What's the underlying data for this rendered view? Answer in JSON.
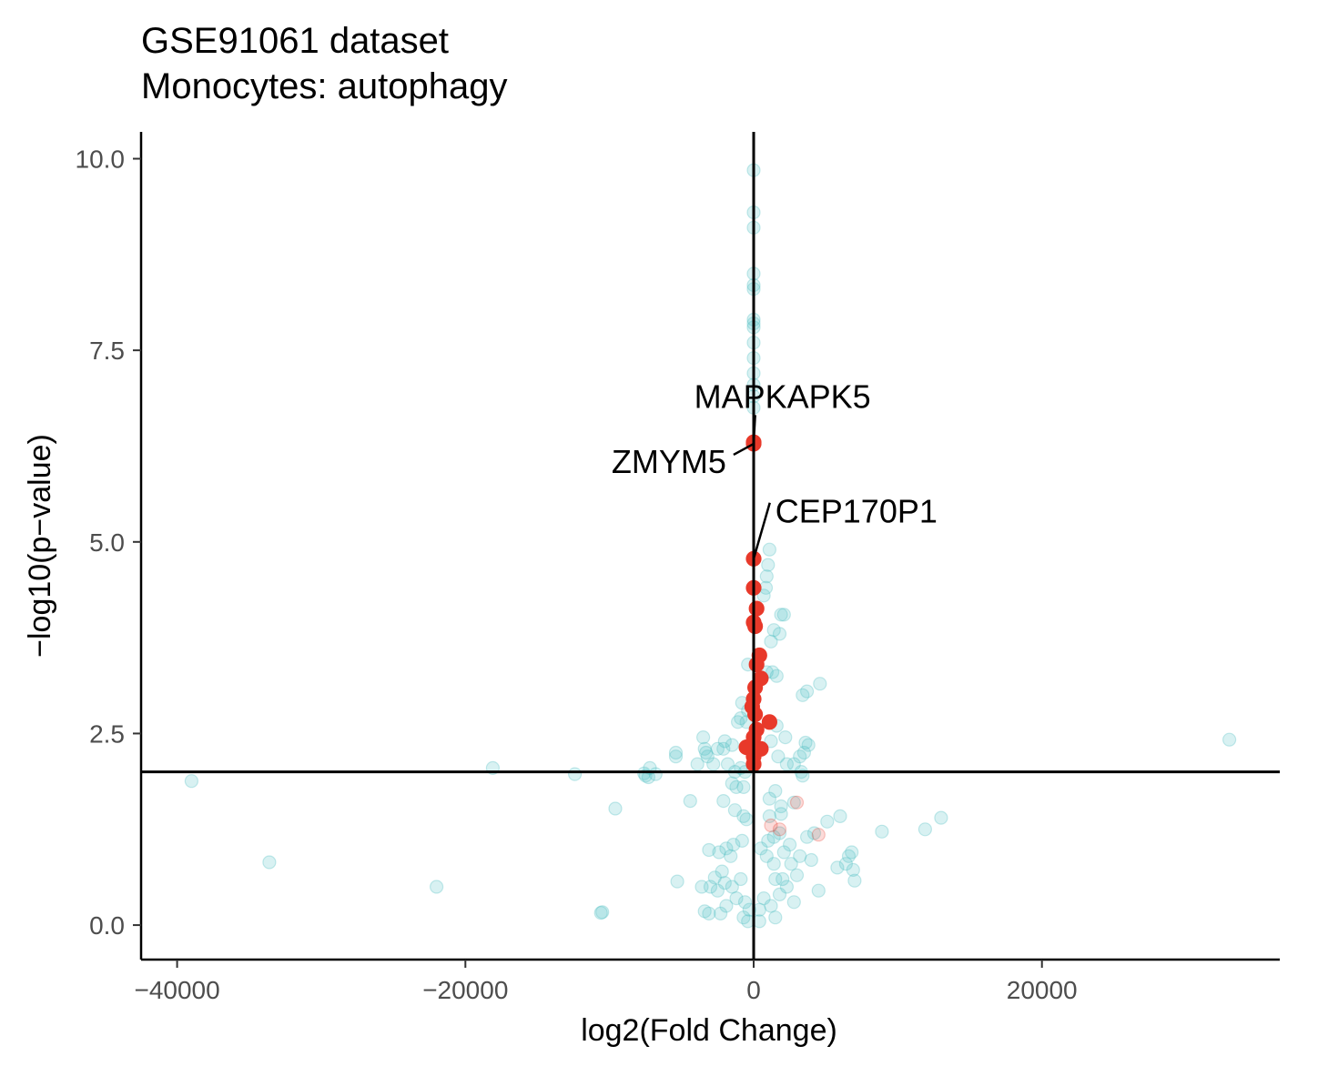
{
  "chart_data": {
    "type": "scatter",
    "title": "GSE91061 dataset",
    "subtitle": "Monocytes: autophagy",
    "xlabel": "log2(Fold Change)",
    "ylabel": "−log10(p−value)",
    "xlim": [
      -42500,
      36500
    ],
    "ylim": [
      -0.45,
      10.35
    ],
    "x_ticks": [
      -40000,
      -20000,
      0,
      20000
    ],
    "x_tick_labels": [
      "−40000",
      "−20000",
      "0",
      "20000"
    ],
    "y_ticks": [
      0.0,
      2.5,
      5.0,
      7.5,
      10.0
    ],
    "y_tick_labels": [
      "0.0",
      "2.5",
      "5.0",
      "7.5",
      "10.0"
    ],
    "reference_lines": {
      "vertical_x": 0,
      "horizontal_y": 2.0
    },
    "grid": false,
    "colors": {
      "background_genes": "#4dbdc2",
      "highlighted_genes": "#e8392a",
      "axis": "#000000"
    },
    "series": [
      {
        "color": "#4dbdc2",
        "opacity": 0.22,
        "points": [
          [
            0,
            9.85
          ],
          [
            0,
            9.3
          ],
          [
            0,
            9.1
          ],
          [
            0,
            8.5
          ],
          [
            0,
            8.35
          ],
          [
            0,
            8.3
          ],
          [
            0,
            7.9
          ],
          [
            0,
            7.85
          ],
          [
            0,
            7.8
          ],
          [
            0,
            7.6
          ],
          [
            0,
            7.4
          ],
          [
            0,
            7.2
          ],
          [
            0,
            7.05
          ],
          [
            0,
            6.9
          ],
          [
            0,
            6.75
          ],
          [
            1100,
            4.9
          ],
          [
            1000,
            4.7
          ],
          [
            900,
            4.55
          ],
          [
            850,
            4.4
          ],
          [
            700,
            4.3
          ],
          [
            1900,
            4.05
          ],
          [
            2100,
            4.05
          ],
          [
            1400,
            3.85
          ],
          [
            1800,
            3.8
          ],
          [
            1200,
            3.7
          ],
          [
            -400,
            3.4
          ],
          [
            900,
            3.3
          ],
          [
            1300,
            3.3
          ],
          [
            1600,
            3.25
          ],
          [
            4600,
            3.15
          ],
          [
            3700,
            3.05
          ],
          [
            3400,
            3.0
          ],
          [
            -800,
            2.9
          ],
          [
            -400,
            2.8
          ],
          [
            -900,
            2.7
          ],
          [
            -500,
            2.65
          ],
          [
            -1100,
            2.65
          ],
          [
            -2000,
            2.4
          ],
          [
            -1500,
            2.35
          ],
          [
            -2100,
            2.3
          ],
          [
            -2500,
            2.3
          ],
          [
            -3500,
            2.45
          ],
          [
            -3400,
            2.3
          ],
          [
            -3300,
            2.25
          ],
          [
            -5400,
            2.25
          ],
          [
            -5400,
            2.2
          ],
          [
            -7200,
            2.05
          ],
          [
            -7600,
            1.98
          ],
          [
            -6800,
            1.97
          ],
          [
            -7500,
            1.95
          ],
          [
            -7300,
            1.93
          ],
          [
            -12400,
            1.97
          ],
          [
            -18100,
            2.05
          ],
          [
            -3900,
            2.1
          ],
          [
            -3200,
            2.2
          ],
          [
            -2800,
            2.1
          ],
          [
            -1800,
            2.1
          ],
          [
            -1300,
            2.0
          ],
          [
            -900,
            2.05
          ],
          [
            -600,
            2.0
          ],
          [
            1700,
            2.2
          ],
          [
            2300,
            2.1
          ],
          [
            2800,
            2.1
          ],
          [
            3200,
            2.2
          ],
          [
            3500,
            2.25
          ],
          [
            3800,
            2.35
          ],
          [
            3600,
            2.38
          ],
          [
            3300,
            2.0
          ],
          [
            3400,
            1.95
          ],
          [
            1200,
            2.4
          ],
          [
            1600,
            2.6
          ],
          [
            2200,
            2.45
          ],
          [
            33000,
            2.42
          ],
          [
            -39000,
            1.88
          ],
          [
            -700,
            1.8
          ],
          [
            -1200,
            1.8
          ],
          [
            -1500,
            1.85
          ],
          [
            1500,
            1.75
          ],
          [
            1100,
            1.65
          ],
          [
            1900,
            1.55
          ],
          [
            2800,
            1.6
          ],
          [
            -2100,
            1.62
          ],
          [
            -4400,
            1.62
          ],
          [
            -9600,
            1.52
          ],
          [
            -1300,
            1.5
          ],
          [
            -700,
            1.42
          ],
          [
            -500,
            1.38
          ],
          [
            1100,
            1.42
          ],
          [
            1900,
            1.45
          ],
          [
            6000,
            1.42
          ],
          [
            13000,
            1.4
          ],
          [
            11900,
            1.25
          ],
          [
            8900,
            1.22
          ],
          [
            5100,
            1.35
          ],
          [
            4200,
            1.2
          ],
          [
            3700,
            1.15
          ],
          [
            1800,
            1.2
          ],
          [
            1400,
            1.15
          ],
          [
            1000,
            1.1
          ],
          [
            2500,
            1.05
          ],
          [
            -800,
            1.1
          ],
          [
            -1400,
            1.05
          ],
          [
            -1900,
            1.0
          ],
          [
            -3100,
            0.98
          ],
          [
            -2400,
            0.95
          ],
          [
            -1600,
            0.9
          ],
          [
            -33600,
            0.82
          ],
          [
            -22000,
            0.5
          ],
          [
            -5300,
            0.57
          ],
          [
            -2700,
            0.62
          ],
          [
            -2200,
            0.7
          ],
          [
            -2000,
            0.55
          ],
          [
            -2500,
            0.45
          ],
          [
            -3000,
            0.5
          ],
          [
            -3600,
            0.5
          ],
          [
            -1500,
            0.5
          ],
          [
            -900,
            0.6
          ],
          [
            -10500,
            0.17
          ],
          [
            -10600,
            0.16
          ],
          [
            -2300,
            0.15
          ],
          [
            -3100,
            0.15
          ],
          [
            -3400,
            0.18
          ],
          [
            -1900,
            0.25
          ],
          [
            -1200,
            0.35
          ],
          [
            -600,
            0.3
          ],
          [
            -300,
            0.2
          ],
          [
            400,
            0.2
          ],
          [
            700,
            0.35
          ],
          [
            1200,
            0.25
          ],
          [
            1800,
            0.4
          ],
          [
            2000,
            0.6
          ],
          [
            2600,
            0.8
          ],
          [
            3200,
            0.9
          ],
          [
            4000,
            0.85
          ],
          [
            6600,
            0.9
          ],
          [
            6800,
            0.95
          ],
          [
            6400,
            0.8
          ],
          [
            6900,
            0.72
          ],
          [
            7000,
            0.58
          ],
          [
            5800,
            0.75
          ],
          [
            4500,
            0.45
          ],
          [
            2300,
            0.5
          ],
          [
            1500,
            0.6
          ],
          [
            1400,
            0.8
          ],
          [
            900,
            0.9
          ],
          [
            500,
            1.0
          ],
          [
            2800,
            0.3
          ],
          [
            1500,
            0.1
          ],
          [
            400,
            0.05
          ],
          [
            -400,
            0.05
          ],
          [
            -700,
            0.1
          ],
          [
            3000,
            0.65
          ],
          [
            2100,
            0.95
          ]
        ]
      },
      {
        "color": "#e8392a",
        "opacity": 0.18,
        "points": [
          [
            4500,
            1.18
          ],
          [
            3000,
            1.6
          ],
          [
            1800,
            1.25
          ],
          [
            1200,
            1.3
          ]
        ]
      },
      {
        "color": "#e8392a",
        "opacity": 1,
        "points": [
          [
            0,
            6.3
          ],
          [
            0,
            6.28
          ],
          [
            0,
            4.78
          ],
          [
            0,
            4.4
          ],
          [
            200,
            4.13
          ],
          [
            0,
            3.95
          ],
          [
            100,
            3.9
          ],
          [
            400,
            3.52
          ],
          [
            200,
            3.4
          ],
          [
            500,
            3.22
          ],
          [
            100,
            3.1
          ],
          [
            0,
            2.95
          ],
          [
            -100,
            2.85
          ],
          [
            100,
            2.75
          ],
          [
            1100,
            2.65
          ],
          [
            200,
            2.55
          ],
          [
            0,
            2.45
          ],
          [
            -500,
            2.32
          ],
          [
            500,
            2.3
          ],
          [
            0,
            2.2
          ],
          [
            0,
            2.1
          ]
        ]
      }
    ],
    "annotations": [
      {
        "label": "MAPKAPK5",
        "x": 0,
        "y": 6.3,
        "label_x": 2000,
        "label_y": 6.75,
        "anchor": "middle"
      },
      {
        "label": "ZMYM5",
        "x": 0,
        "y": 6.28,
        "label_x": -1900,
        "label_y": 5.9,
        "anchor": "end"
      },
      {
        "label": "CEP170P1",
        "x": 0,
        "y": 4.78,
        "label_x": 1500,
        "label_y": 5.25,
        "anchor": "start"
      }
    ]
  }
}
